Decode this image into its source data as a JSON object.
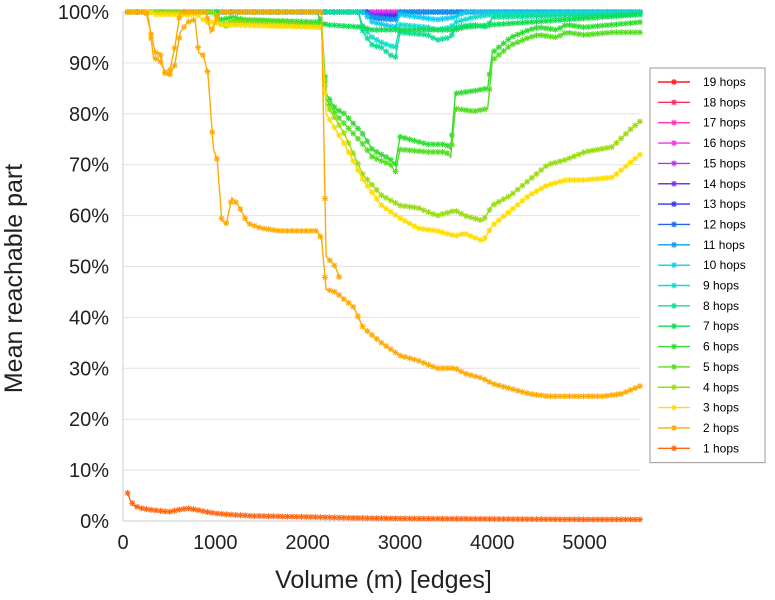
{
  "chart_data": {
    "type": "line",
    "xlabel": "Volume (m) [edges]",
    "ylabel": "Mean reachable part",
    "xlim": [
      0,
      5600
    ],
    "ylim": [
      0,
      100
    ],
    "x_ticks": [
      0,
      1000,
      2000,
      3000,
      4000,
      5000
    ],
    "y_ticks": [
      0,
      10,
      20,
      30,
      40,
      50,
      60,
      70,
      80,
      90,
      100
    ],
    "x_tick_labels": [
      "0",
      "1000",
      "2000",
      "3000",
      "4000",
      "5000"
    ],
    "y_tick_labels": [
      "0%",
      "10%",
      "20%",
      "30%",
      "40%",
      "50%",
      "60%",
      "70%",
      "80%",
      "90%",
      "100%"
    ],
    "grid": "horizontal",
    "legend_position": "right",
    "marker": "asterisk",
    "series": [
      {
        "name": "19 hops",
        "color": "#ff1a1a",
        "points": [
          [
            50,
            100
          ],
          [
            5600,
            100
          ]
        ]
      },
      {
        "name": "18 hops",
        "color": "#ff2a55",
        "points": [
          [
            50,
            100
          ],
          [
            5600,
            100
          ]
        ]
      },
      {
        "name": "17 hops",
        "color": "#ff33bb",
        "points": [
          [
            50,
            100
          ],
          [
            5600,
            100
          ]
        ]
      },
      {
        "name": "16 hops",
        "color": "#ee33ee",
        "points": [
          [
            50,
            100
          ],
          [
            5600,
            100
          ]
        ]
      },
      {
        "name": "15 hops",
        "color": "#bb33ee",
        "points": [
          [
            50,
            100
          ],
          [
            2650,
            100
          ],
          [
            2700,
            99.5
          ],
          [
            2950,
            99.5
          ],
          [
            3000,
            100
          ],
          [
            5600,
            100
          ]
        ]
      },
      {
        "name": "14 hops",
        "color": "#7733ee",
        "points": [
          [
            50,
            100
          ],
          [
            2650,
            100
          ],
          [
            2700,
            99.3
          ],
          [
            2950,
            99.3
          ],
          [
            3000,
            100
          ],
          [
            5600,
            100
          ]
        ]
      },
      {
        "name": "13 hops",
        "color": "#3333ee",
        "points": [
          [
            50,
            100
          ],
          [
            2650,
            100
          ],
          [
            2700,
            99.0
          ],
          [
            2950,
            99.0
          ],
          [
            3000,
            100
          ],
          [
            5600,
            100
          ]
        ]
      },
      {
        "name": "12 hops",
        "color": "#2266ee",
        "points": [
          [
            50,
            100
          ],
          [
            2650,
            100
          ],
          [
            2700,
            98.8
          ],
          [
            2950,
            98.5
          ],
          [
            3000,
            100
          ],
          [
            5600,
            100
          ]
        ]
      },
      {
        "name": "11 hops",
        "color": "#1199ee",
        "points": [
          [
            50,
            100
          ],
          [
            2600,
            100
          ],
          [
            2700,
            99.0
          ],
          [
            2950,
            98.5
          ],
          [
            3000,
            100
          ],
          [
            5600,
            100
          ]
        ]
      },
      {
        "name": "10 hops",
        "color": "#11ccee",
        "points": [
          [
            50,
            100
          ],
          [
            2600,
            100
          ],
          [
            2700,
            98.0
          ],
          [
            2950,
            97.0
          ],
          [
            3000,
            99.5
          ],
          [
            3400,
            98.5
          ],
          [
            3600,
            99.0
          ],
          [
            3700,
            100
          ],
          [
            5600,
            100
          ]
        ]
      },
      {
        "name": "9 hops",
        "color": "#11ddcc",
        "points": [
          [
            50,
            100
          ],
          [
            2550,
            100
          ],
          [
            2600,
            97.0
          ],
          [
            2700,
            95.0
          ],
          [
            2800,
            94.0
          ],
          [
            2950,
            93.0
          ],
          [
            3000,
            97.5
          ],
          [
            3300,
            97.0
          ],
          [
            3400,
            96.5
          ],
          [
            3550,
            97.0
          ],
          [
            3600,
            98.0
          ],
          [
            3800,
            99.0
          ],
          [
            4000,
            99.5
          ],
          [
            5600,
            100
          ]
        ]
      },
      {
        "name": "8 hops",
        "color": "#11dd99",
        "points": [
          [
            50,
            100
          ],
          [
            2550,
            100
          ],
          [
            2600,
            96.0
          ],
          [
            2700,
            93.5
          ],
          [
            2800,
            93.0
          ],
          [
            2900,
            91.5
          ],
          [
            2950,
            91.0
          ],
          [
            3000,
            96.0
          ],
          [
            3300,
            95.5
          ],
          [
            3400,
            94.5
          ],
          [
            3550,
            95.0
          ],
          [
            3600,
            97.0
          ],
          [
            3800,
            97.5
          ],
          [
            3950,
            97.0
          ],
          [
            4000,
            99.0
          ],
          [
            5600,
            99.5
          ]
        ]
      },
      {
        "name": "7 hops",
        "color": "#11dd55",
        "points": [
          [
            50,
            100
          ],
          [
            2100,
            100
          ],
          [
            2150,
            98.0
          ],
          [
            2200,
            97.5
          ],
          [
            2600,
            97.0
          ],
          [
            2700,
            96.5
          ],
          [
            3000,
            96.5
          ],
          [
            3600,
            96.5
          ],
          [
            3700,
            97.0
          ],
          [
            4000,
            97.5
          ],
          [
            5600,
            99.5
          ]
        ]
      },
      {
        "name": "6 hops",
        "color": "#33dd33",
        "points": [
          [
            50,
            100
          ],
          [
            1000,
            100
          ],
          [
            1050,
            98.5
          ],
          [
            1200,
            99.0
          ],
          [
            1300,
            98.5
          ],
          [
            2150,
            98.0
          ],
          [
            2200,
            84.0
          ],
          [
            2300,
            81.0
          ],
          [
            2400,
            80.0
          ],
          [
            2500,
            78.0
          ],
          [
            2600,
            76.0
          ],
          [
            2700,
            73.0
          ],
          [
            2900,
            71.0
          ],
          [
            2950,
            70.0
          ],
          [
            3000,
            75.5
          ],
          [
            3300,
            74.0
          ],
          [
            3500,
            74.0
          ],
          [
            3550,
            73.0
          ],
          [
            3600,
            84.0
          ],
          [
            3800,
            84.5
          ],
          [
            3950,
            85.0
          ],
          [
            4000,
            92.0
          ],
          [
            4200,
            95.0
          ],
          [
            4400,
            96.5
          ],
          [
            4500,
            97.0
          ],
          [
            4700,
            96.5
          ],
          [
            4800,
            97.5
          ],
          [
            5000,
            97.0
          ],
          [
            5300,
            97.5
          ],
          [
            5600,
            98.0
          ]
        ]
      },
      {
        "name": "5 hops",
        "color": "#55dd22",
        "points": [
          [
            50,
            100
          ],
          [
            1000,
            100
          ],
          [
            1050,
            98.0
          ],
          [
            1100,
            97.0
          ],
          [
            1200,
            98.5
          ],
          [
            2150,
            97.5
          ],
          [
            2200,
            83.0
          ],
          [
            2300,
            80.0
          ],
          [
            2400,
            78.0
          ],
          [
            2500,
            76.0
          ],
          [
            2600,
            74.0
          ],
          [
            2700,
            71.5
          ],
          [
            2900,
            70.0
          ],
          [
            2950,
            68.5
          ],
          [
            3000,
            73.0
          ],
          [
            3300,
            72.5
          ],
          [
            3500,
            72.5
          ],
          [
            3550,
            71.5
          ],
          [
            3600,
            81.0
          ],
          [
            3800,
            80.5
          ],
          [
            3950,
            81.0
          ],
          [
            4000,
            90.5
          ],
          [
            4200,
            93.5
          ],
          [
            4400,
            95.0
          ],
          [
            4500,
            95.5
          ],
          [
            4700,
            95.0
          ],
          [
            4800,
            96.0
          ],
          [
            5000,
            95.5
          ],
          [
            5300,
            96.0
          ],
          [
            5600,
            96.0
          ]
        ]
      },
      {
        "name": "4 hops",
        "color": "#99dd11",
        "points": [
          [
            50,
            100
          ],
          [
            1000,
            100
          ],
          [
            1050,
            97.5
          ],
          [
            1200,
            98.0
          ],
          [
            2150,
            97.0
          ],
          [
            2200,
            82.0
          ],
          [
            2400,
            76.0
          ],
          [
            2600,
            68.0
          ],
          [
            2800,
            64.0
          ],
          [
            3000,
            62.0
          ],
          [
            3200,
            61.5
          ],
          [
            3400,
            60.0
          ],
          [
            3600,
            61.0
          ],
          [
            3700,
            60.0
          ],
          [
            3900,
            59.0
          ],
          [
            4000,
            62.0
          ],
          [
            4200,
            64.0
          ],
          [
            4400,
            67.0
          ],
          [
            4600,
            70.0
          ],
          [
            4800,
            71.0
          ],
          [
            5000,
            72.5
          ],
          [
            5300,
            73.5
          ],
          [
            5500,
            77.0
          ],
          [
            5600,
            78.5
          ]
        ]
      },
      {
        "name": "3 hops",
        "color": "#ffdd00",
        "points": [
          [
            50,
            100
          ],
          [
            300,
            100
          ],
          [
            350,
            99.5
          ],
          [
            800,
            99.5
          ],
          [
            900,
            98.0
          ],
          [
            1000,
            98.0
          ],
          [
            1050,
            97.5
          ],
          [
            2150,
            97.0
          ],
          [
            2200,
            80.0
          ],
          [
            2400,
            74.0
          ],
          [
            2600,
            67.0
          ],
          [
            2800,
            62.0
          ],
          [
            3000,
            59.5
          ],
          [
            3200,
            57.5
          ],
          [
            3400,
            57.0
          ],
          [
            3600,
            56.0
          ],
          [
            3700,
            56.5
          ],
          [
            3900,
            55.0
          ],
          [
            4000,
            58.0
          ],
          [
            4200,
            61.0
          ],
          [
            4400,
            64.0
          ],
          [
            4600,
            66.0
          ],
          [
            4800,
            67.0
          ],
          [
            5000,
            67.0
          ],
          [
            5300,
            67.5
          ],
          [
            5500,
            70.5
          ],
          [
            5600,
            72.0
          ]
        ]
      },
      {
        "name": "2 hops",
        "color": "#ffaa00",
        "points": [
          [
            50,
            100
          ],
          [
            250,
            100
          ],
          [
            280,
            98.5
          ],
          [
            330,
            91.0
          ],
          [
            400,
            90.5
          ],
          [
            460,
            88.0
          ],
          [
            500,
            87.5
          ],
          [
            560,
            89.5
          ],
          [
            620,
            96.0
          ],
          [
            700,
            98.0
          ],
          [
            780,
            98.5
          ],
          [
            820,
            92.0
          ],
          [
            870,
            91.5
          ],
          [
            920,
            88.0
          ],
          [
            980,
            73.0
          ],
          [
            1020,
            71.0
          ],
          [
            1070,
            59.0
          ],
          [
            1120,
            58.5
          ],
          [
            1180,
            63.5
          ],
          [
            1250,
            62.0
          ],
          [
            1350,
            58.5
          ],
          [
            1500,
            57.5
          ],
          [
            1700,
            57.0
          ],
          [
            2100,
            57.0
          ],
          [
            2150,
            55.5
          ],
          [
            2200,
            45.5
          ],
          [
            2300,
            45.0
          ],
          [
            2400,
            43.5
          ],
          [
            2500,
            42.0
          ],
          [
            2600,
            38.0
          ],
          [
            2800,
            35.0
          ],
          [
            3000,
            32.5
          ],
          [
            3200,
            31.5
          ],
          [
            3400,
            30.0
          ],
          [
            3600,
            30.0
          ],
          [
            3700,
            29.0
          ],
          [
            3900,
            28.0
          ],
          [
            4000,
            27.0
          ],
          [
            4200,
            26.0
          ],
          [
            4400,
            25.0
          ],
          [
            4600,
            24.5
          ],
          [
            4800,
            24.5
          ],
          [
            5000,
            24.5
          ],
          [
            5200,
            24.5
          ],
          [
            5400,
            25.0
          ],
          [
            5600,
            26.5
          ]
        ]
      },
      {
        "name": "1 hops",
        "color": "#ff6611",
        "points": [
          [
            50,
            5.5
          ],
          [
            80,
            4.0
          ],
          [
            120,
            3.0
          ],
          [
            200,
            2.5
          ],
          [
            300,
            2.2
          ],
          [
            400,
            2.0
          ],
          [
            500,
            1.8
          ],
          [
            600,
            2.2
          ],
          [
            700,
            2.5
          ],
          [
            800,
            2.2
          ],
          [
            900,
            1.8
          ],
          [
            1000,
            1.5
          ],
          [
            1200,
            1.2
          ],
          [
            1400,
            1.0
          ],
          [
            1700,
            0.9
          ],
          [
            2000,
            0.8
          ],
          [
            2500,
            0.6
          ],
          [
            3000,
            0.5
          ],
          [
            3500,
            0.45
          ],
          [
            4000,
            0.4
          ],
          [
            4500,
            0.35
          ],
          [
            5000,
            0.3
          ],
          [
            5600,
            0.3
          ]
        ]
      },
      {
        "name": "",
        "color": "#ffaa00",
        "points": [
          [
            50,
            100
          ],
          [
            250,
            100
          ],
          [
            300,
            96.0
          ],
          [
            350,
            92.0
          ],
          [
            400,
            92.0
          ],
          [
            450,
            88.0
          ],
          [
            500,
            88.0
          ],
          [
            560,
            93.0
          ],
          [
            620,
            100
          ],
          [
            900,
            100
          ],
          [
            950,
            96.0
          ],
          [
            1000,
            98.0
          ],
          [
            1050,
            100
          ],
          [
            2150,
            100
          ],
          [
            2200,
            52.0
          ],
          [
            2300,
            50.0
          ],
          [
            2350,
            47.5
          ]
        ]
      }
    ]
  }
}
